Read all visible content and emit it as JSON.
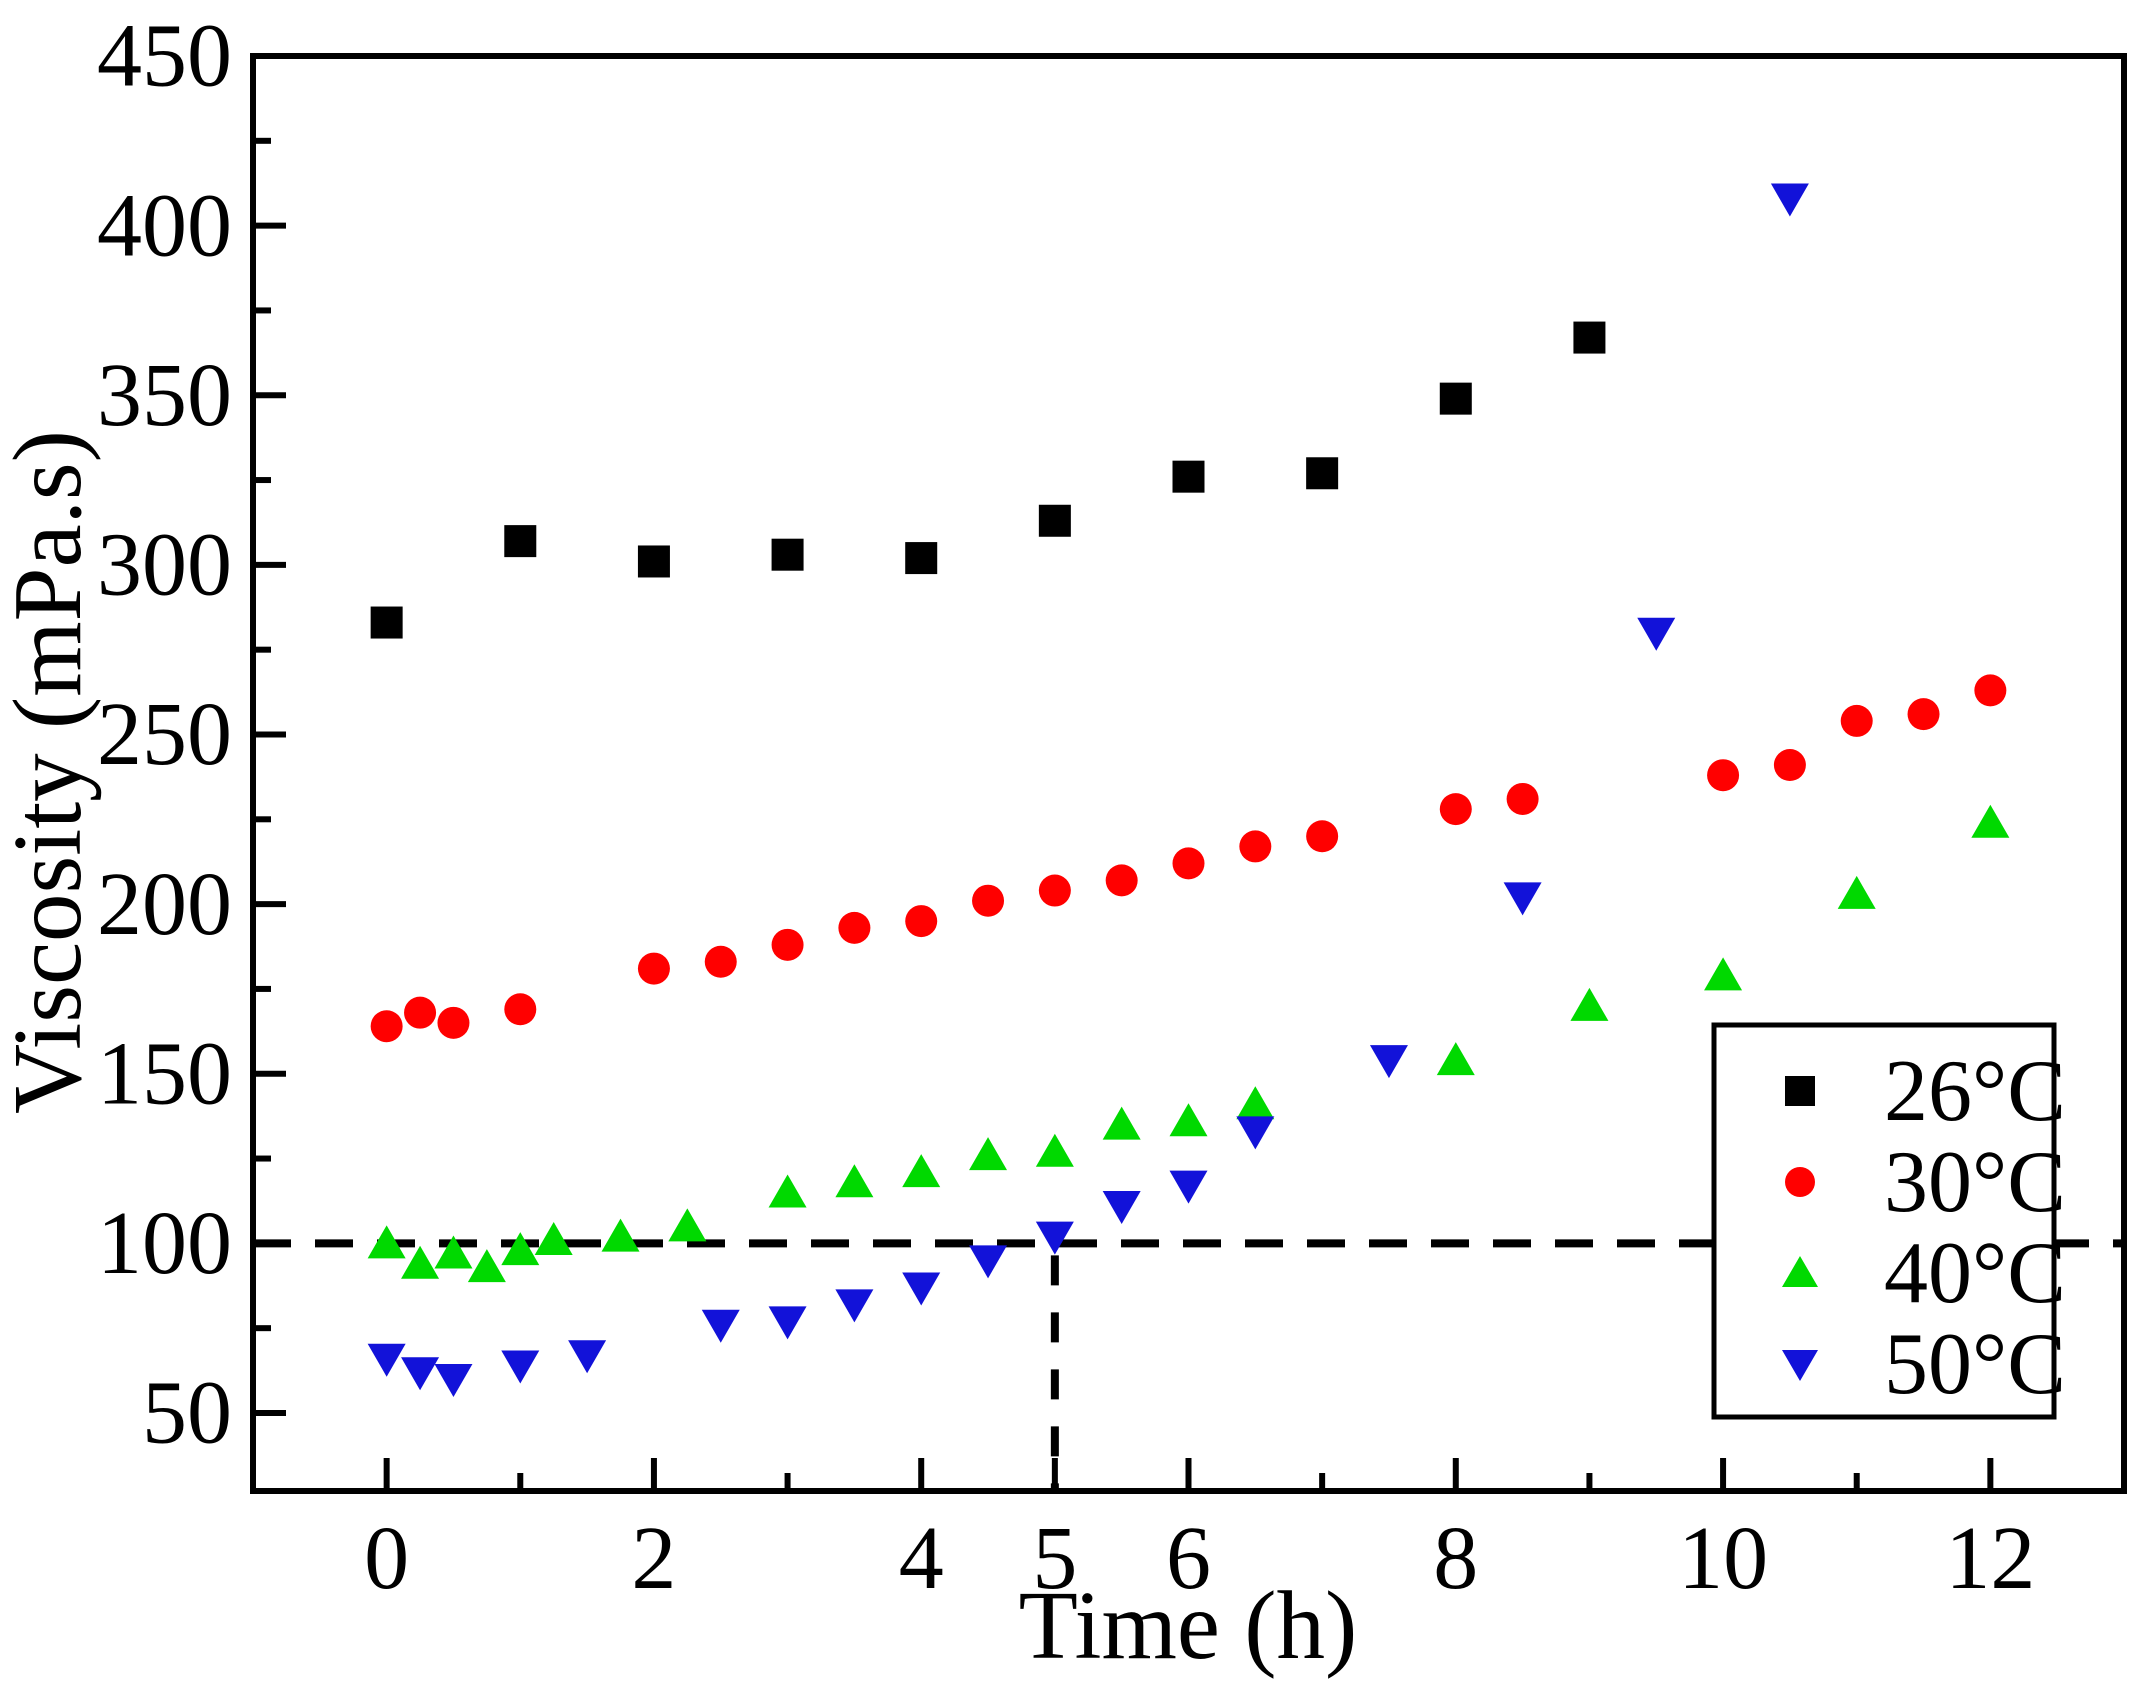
{
  "chart_data": {
    "type": "scatter",
    "title": "",
    "xlabel": "Time (h)",
    "ylabel": "Viscosity (mPa.s)",
    "xlim": [
      -1,
      13
    ],
    "ylim": [
      27,
      450
    ],
    "grid": "off",
    "x_axis": {
      "major_ticks": [
        0,
        2,
        4,
        5,
        6,
        8,
        10,
        12
      ],
      "major_tick_labels": [
        "0",
        "2",
        "4",
        "5",
        "6",
        "8",
        "10",
        "12"
      ],
      "minor_ticks": [
        1,
        3,
        7,
        9,
        11
      ]
    },
    "y_axis": {
      "major_ticks": [
        50,
        100,
        150,
        200,
        250,
        300,
        350,
        400,
        450
      ],
      "major_tick_labels": [
        "50",
        "100",
        "150",
        "200",
        "250",
        "300",
        "350",
        "400",
        "450"
      ],
      "minor_ticks": [
        75,
        125,
        175,
        225,
        275,
        325,
        375,
        425
      ]
    },
    "reference_lines": [
      {
        "kind": "horizontal-dashed",
        "y": 100,
        "x_from": -1,
        "x_to": 13,
        "color": "#000000"
      },
      {
        "kind": "vertical-dashed",
        "x": 5,
        "y_from": 27,
        "y_to": 100,
        "color": "#000000"
      }
    ],
    "legend": {
      "position": "lower-right",
      "entries": [
        {
          "label": "26°C",
          "marker": "square",
          "color": "#000000"
        },
        {
          "label": "30°C",
          "marker": "circle",
          "color": "#FF0000"
        },
        {
          "label": "40°C",
          "marker": "triangle-up",
          "color": "#00D900"
        },
        {
          "label": "50°C",
          "marker": "triangle-down",
          "color": "#1212D9"
        }
      ]
    },
    "series": [
      {
        "name": "26°C",
        "marker": "square",
        "color": "#000000",
        "points": [
          [
            0,
            283
          ],
          [
            1,
            307
          ],
          [
            2,
            301
          ],
          [
            3,
            303
          ],
          [
            4,
            302
          ],
          [
            5,
            313
          ],
          [
            6,
            326
          ],
          [
            7,
            327
          ],
          [
            8,
            349
          ],
          [
            9,
            367
          ]
        ]
      },
      {
        "name": "30°C",
        "marker": "circle",
        "color": "#FF0000",
        "points": [
          [
            0,
            164
          ],
          [
            0.25,
            168
          ],
          [
            0.5,
            165
          ],
          [
            1,
            169
          ],
          [
            2,
            181
          ],
          [
            2.5,
            183
          ],
          [
            3,
            188
          ],
          [
            3.5,
            193
          ],
          [
            4,
            195
          ],
          [
            4.5,
            201
          ],
          [
            5,
            204
          ],
          [
            5.5,
            207
          ],
          [
            6,
            212
          ],
          [
            6.5,
            217
          ],
          [
            7,
            220
          ],
          [
            8,
            228
          ],
          [
            8.5,
            231
          ],
          [
            10,
            238
          ],
          [
            10.5,
            241
          ],
          [
            11,
            254
          ],
          [
            11.5,
            256
          ],
          [
            12,
            263
          ]
        ]
      },
      {
        "name": "40°C",
        "marker": "triangle-up",
        "color": "#00D900",
        "points": [
          [
            0,
            100
          ],
          [
            0.25,
            94
          ],
          [
            0.5,
            97
          ],
          [
            0.75,
            93
          ],
          [
            1,
            98
          ],
          [
            1.25,
            101
          ],
          [
            1.75,
            102
          ],
          [
            2.25,
            105
          ],
          [
            3,
            115
          ],
          [
            3.5,
            118
          ],
          [
            4,
            121
          ],
          [
            4.5,
            126
          ],
          [
            5,
            127
          ],
          [
            5.5,
            135
          ],
          [
            6,
            136
          ],
          [
            6.5,
            141
          ],
          [
            8,
            154
          ],
          [
            9,
            170
          ],
          [
            10,
            179
          ],
          [
            11,
            203
          ],
          [
            12,
            224
          ]
        ]
      },
      {
        "name": "50°C",
        "marker": "triangle-down",
        "color": "#1212D9",
        "points": [
          [
            0,
            66
          ],
          [
            0.25,
            62
          ],
          [
            0.5,
            60
          ],
          [
            1,
            64
          ],
          [
            1.5,
            67
          ],
          [
            2.5,
            76
          ],
          [
            3,
            77
          ],
          [
            3.5,
            82
          ],
          [
            4,
            87
          ],
          [
            4.5,
            95
          ],
          [
            5,
            102
          ],
          [
            5.5,
            111
          ],
          [
            6,
            117
          ],
          [
            6.5,
            133
          ],
          [
            7.5,
            154
          ],
          [
            8.5,
            202
          ],
          [
            9.5,
            280
          ],
          [
            10.5,
            408
          ]
        ]
      }
    ]
  }
}
